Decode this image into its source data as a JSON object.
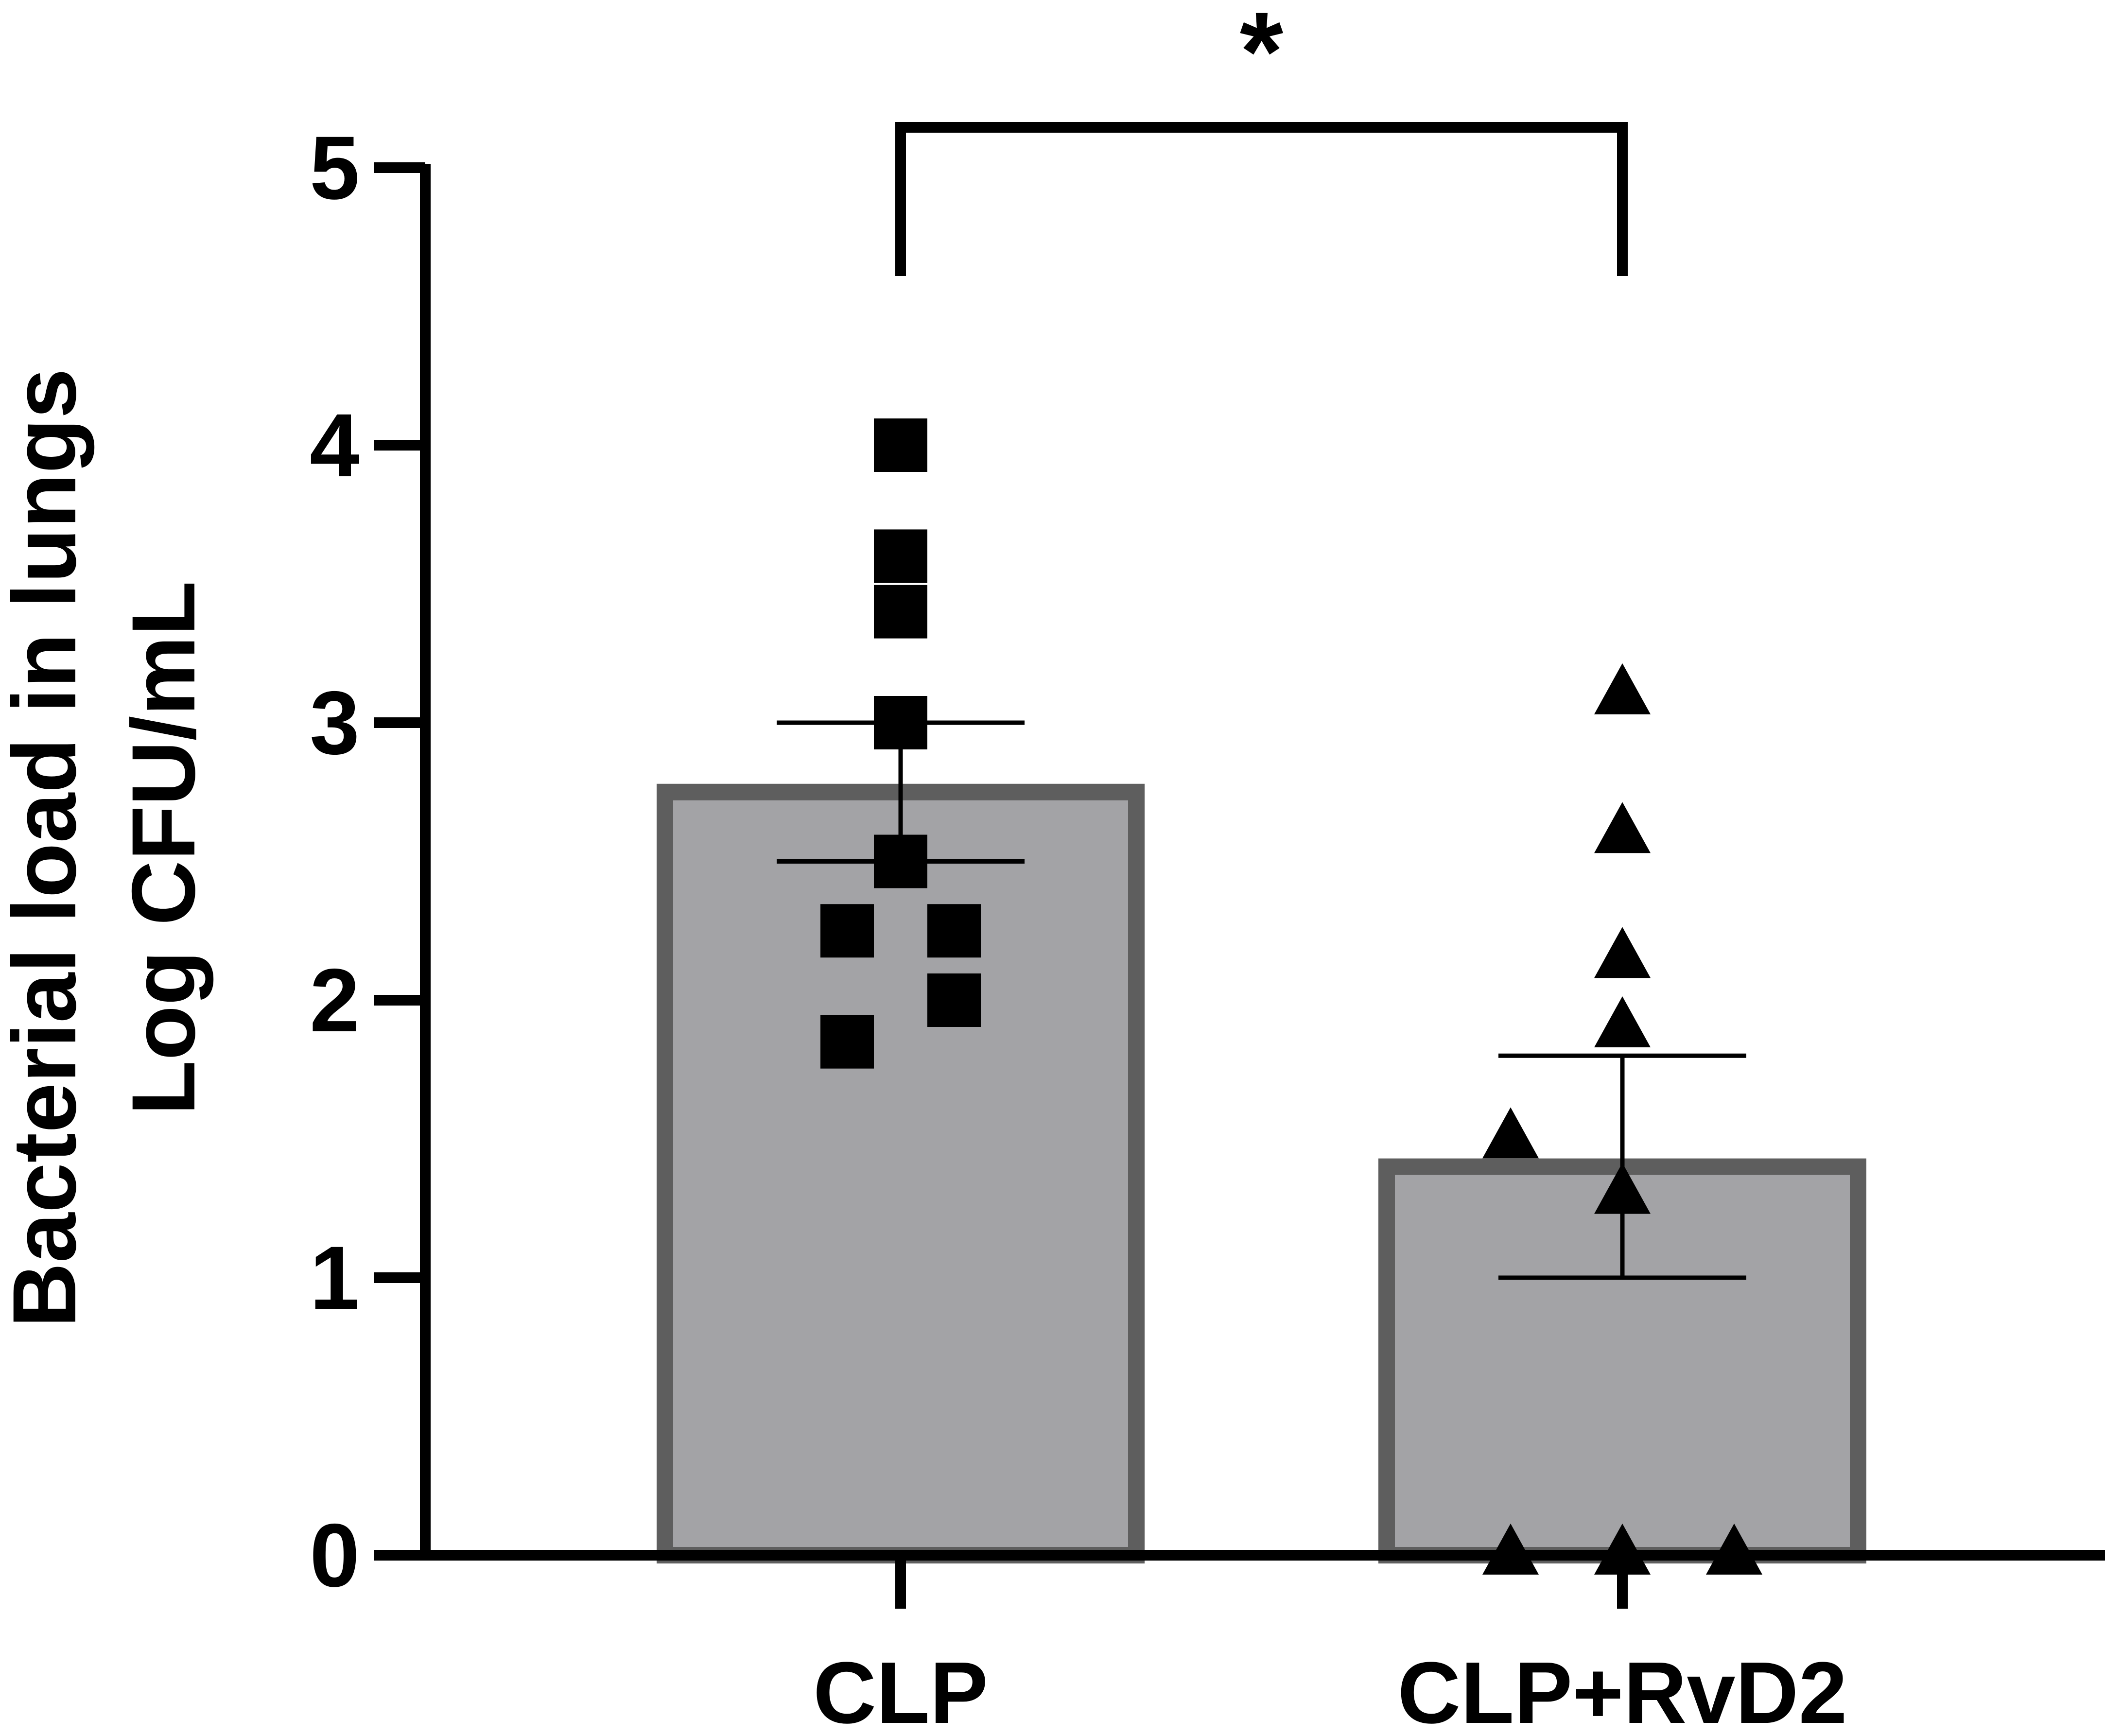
{
  "chart_data": {
    "type": "bar",
    "title": "",
    "ylabel_lines": [
      "Bacterial load in lungs",
      "Log CFU/mL"
    ],
    "xlabel": "",
    "ylim": [
      0,
      5
    ],
    "yticks": [
      0,
      1,
      2,
      3,
      4,
      5
    ],
    "ytick_labels": [
      "0",
      "1",
      "2",
      "3",
      "4",
      "5"
    ],
    "categories": [
      "CLP",
      "CLP+RvD2"
    ],
    "values": [
      2.75,
      1.4
    ],
    "error_lower": [
      2.5,
      1.0
    ],
    "error_upper": [
      3.0,
      1.8
    ],
    "points": [
      {
        "marker": "square",
        "values": [
          4.0,
          3.6,
          3.4,
          3.0,
          2.5,
          2.25,
          2.25,
          2.0,
          1.85
        ]
      },
      {
        "marker": "triangle",
        "values": [
          3.1,
          2.6,
          2.15,
          1.9,
          1.5,
          1.3,
          0.0,
          0.0,
          0.0
        ]
      }
    ],
    "significance": {
      "between": [
        0,
        1
      ],
      "label": "*"
    },
    "colors": {
      "bar_fill": "#a3a3a6",
      "bar_edge": "#5e5e5e",
      "ink": "#000000"
    }
  }
}
